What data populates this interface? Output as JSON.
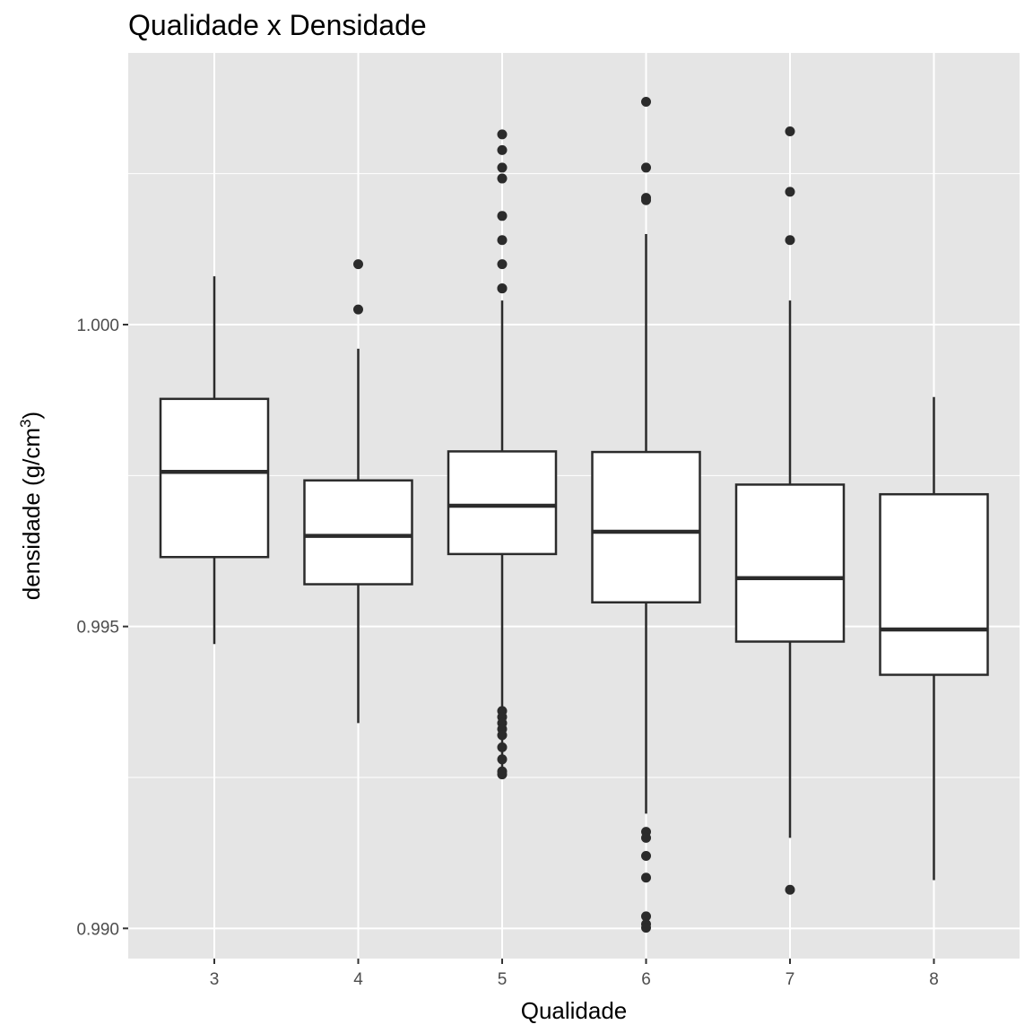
{
  "chart_data": {
    "type": "box",
    "title": "Qualidade x Densidade",
    "xlabel": "Qualidade",
    "ylabel": "densidade (g/cm",
    "ylabel_superscript": "3",
    "ylabel_suffix": ")",
    "ylim": [
      0.9895,
      1.0045
    ],
    "y_major_ticks": [
      0.99,
      0.995,
      1.0
    ],
    "y_tick_labels": [
      "0.990",
      "0.995",
      "1.000"
    ],
    "y_minor_ticks": [
      0.9925,
      0.9975,
      1.0025
    ],
    "grid": true,
    "panel_background": "#e5e5e5",
    "grid_color": "#ffffff",
    "box_fill": "#ffffff",
    "line_color": "#2b2b2b",
    "categories": [
      "3",
      "4",
      "5",
      "6",
      "7",
      "8"
    ],
    "boxes": [
      {
        "category": "3",
        "whisker_low": 0.99471,
        "q1": 0.99615,
        "median": 0.99756,
        "q3": 0.99877,
        "whisker_high": 1.0008,
        "outliers": []
      },
      {
        "category": "4",
        "whisker_low": 0.9934,
        "q1": 0.9957,
        "median": 0.9965,
        "q3": 0.99742,
        "whisker_high": 0.9996,
        "outliers": [
          1.001,
          1.00025
        ]
      },
      {
        "category": "5",
        "whisker_low": 0.9926,
        "q1": 0.9962,
        "median": 0.997,
        "q3": 0.9979,
        "whisker_high": 1.0004,
        "outliers": [
          1.00315,
          1.00289,
          1.0026,
          1.00242,
          1.0018,
          1.0014,
          1.001,
          1.0006,
          1.0006,
          0.9936,
          0.9935,
          0.9934,
          0.9933,
          0.9932,
          0.993,
          0.9928,
          0.9926,
          0.99255
        ]
      },
      {
        "category": "6",
        "whisker_low": 0.9919,
        "q1": 0.9954,
        "median": 0.99657,
        "q3": 0.99789,
        "whisker_high": 1.0015,
        "outliers": [
          1.00369,
          1.0026,
          1.0021,
          1.00206,
          0.9916,
          0.9915,
          0.9912,
          0.99084,
          0.9902,
          0.99007,
          0.99001
        ]
      },
      {
        "category": "7",
        "whisker_low": 0.9915,
        "q1": 0.99475,
        "median": 0.9958,
        "q3": 0.99735,
        "whisker_high": 1.0004,
        "outliers": [
          1.0032,
          1.0022,
          1.0014,
          0.99064
        ]
      },
      {
        "category": "8",
        "whisker_low": 0.9908,
        "q1": 0.9942,
        "median": 0.99495,
        "q3": 0.99719,
        "whisker_high": 0.9988,
        "outliers": []
      }
    ]
  }
}
